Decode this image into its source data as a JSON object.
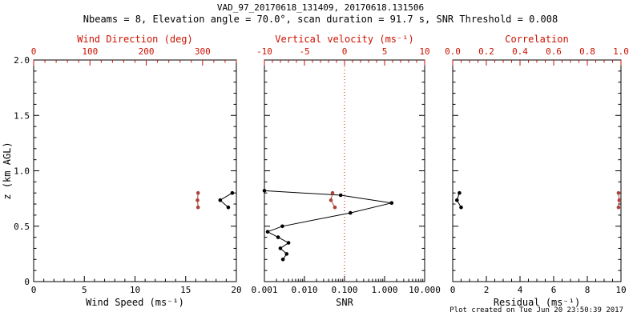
{
  "colors": {
    "background": "#ffffff",
    "axis_black": "#000000",
    "axis_red": "#cc1100",
    "marker_red": "#a94438"
  },
  "chart_data": {
    "type": "scatter",
    "title": "VAD_97_20170618_131409, 20170618.131506",
    "subtitle": "Nbeams = 8, Elevation angle = 70.0°, scan duration = 91.7 s, SNR Threshold = 0.008",
    "footer": "Plot created on Tue Jun 20 23:50:39 2017",
    "ylabel": "z (km AGL)",
    "ylim": [
      0,
      2.0
    ],
    "yticks": [
      0,
      0.5,
      1.0,
      1.5,
      2.0
    ],
    "ytick_labels": [
      "0",
      "0.5",
      "1.0",
      "1.5",
      "2.0"
    ],
    "grid": false,
    "legend": "none",
    "panels": [
      {
        "name": "wind-panel",
        "bottom_axis": {
          "label": "Wind Speed (ms⁻¹)",
          "min": 0,
          "max": 20,
          "ticks": [
            0,
            5,
            10,
            15,
            20
          ],
          "tick_labels": [
            "0",
            "5",
            "10",
            "15",
            "20"
          ],
          "minor_div": 5,
          "color": "#000000"
        },
        "top_axis": {
          "label": "Wind Direction (deg)",
          "min": 0,
          "max": 360,
          "ticks": [
            0,
            100,
            200,
            300
          ],
          "tick_labels": [
            "0",
            "100",
            "200",
            "300"
          ],
          "minor_div": 5,
          "color": "#cc1100"
        },
        "series": [
          {
            "name": "wind-speed",
            "axis": "bottom",
            "color": "#000000",
            "line": true,
            "points": [
              [
                19.6,
                0.8
              ],
              [
                18.4,
                0.735
              ],
              [
                19.2,
                0.67
              ]
            ]
          },
          {
            "name": "wind-direction",
            "axis": "top",
            "color": "#a94438",
            "line": true,
            "points": [
              [
                292,
                0.8
              ],
              [
                291,
                0.735
              ],
              [
                292,
                0.67
              ]
            ]
          }
        ]
      },
      {
        "name": "snr-panel",
        "bottom_axis": {
          "label": "SNR",
          "min": 0.001,
          "max": 10,
          "scale": "log",
          "ticks": [
            0.001,
            0.01,
            0.1,
            1,
            10
          ],
          "tick_labels": [
            "0.001",
            "0.010",
            "0.100",
            "1.000",
            "10.000"
          ],
          "color": "#000000"
        },
        "top_axis": {
          "label": "Vertical velocity (ms⁻¹)",
          "min": -10,
          "max": 10,
          "ticks": [
            -10,
            -5,
            0,
            5,
            10
          ],
          "tick_labels": [
            "-10",
            "-5",
            "0",
            "5",
            "10"
          ],
          "minor_div": 5,
          "color": "#cc1100"
        },
        "ref_line": {
          "axis": "top",
          "value": 0,
          "color": "#cc1100",
          "style": "dotted"
        },
        "series": [
          {
            "name": "snr-profile",
            "axis": "bottom",
            "color": "#000000",
            "line": true,
            "points": [
              [
                0.001,
                0.82
              ],
              [
                0.08,
                0.78
              ],
              [
                1.5,
                0.71
              ],
              [
                0.14,
                0.62
              ],
              [
                0.0028,
                0.5
              ],
              [
                0.0012,
                0.45
              ],
              [
                0.0022,
                0.4
              ],
              [
                0.004,
                0.35
              ],
              [
                0.0025,
                0.3
              ],
              [
                0.0036,
                0.25
              ],
              [
                0.0029,
                0.2
              ]
            ]
          },
          {
            "name": "vertical-velocity",
            "axis": "top",
            "color": "#a94438",
            "line": true,
            "points": [
              [
                -1.5,
                0.8
              ],
              [
                -1.7,
                0.735
              ],
              [
                -1.2,
                0.67
              ]
            ]
          }
        ]
      },
      {
        "name": "residual-panel",
        "bottom_axis": {
          "label": "Residual (ms⁻¹)",
          "min": 0,
          "max": 10,
          "ticks": [
            0,
            2,
            4,
            6,
            8,
            10
          ],
          "tick_labels": [
            "0",
            "2",
            "4",
            "6",
            "8",
            "10"
          ],
          "minor_div": 4,
          "color": "#000000"
        },
        "top_axis": {
          "label": "Correlation",
          "min": 0,
          "max": 1,
          "ticks": [
            0,
            0.2,
            0.4,
            0.6,
            0.8,
            1
          ],
          "tick_labels": [
            "0.0",
            "0.2",
            "0.4",
            "0.6",
            "0.8",
            "1.0"
          ],
          "minor_div": 4,
          "color": "#cc1100"
        },
        "series": [
          {
            "name": "residual",
            "axis": "bottom",
            "color": "#000000",
            "line": true,
            "points": [
              [
                0.4,
                0.8
              ],
              [
                0.25,
                0.735
              ],
              [
                0.5,
                0.67
              ]
            ]
          },
          {
            "name": "correlation",
            "axis": "top",
            "color": "#a94438",
            "line": true,
            "points": [
              [
                0.985,
                0.8
              ],
              [
                0.99,
                0.735
              ],
              [
                0.985,
                0.67
              ]
            ]
          }
        ]
      }
    ]
  }
}
